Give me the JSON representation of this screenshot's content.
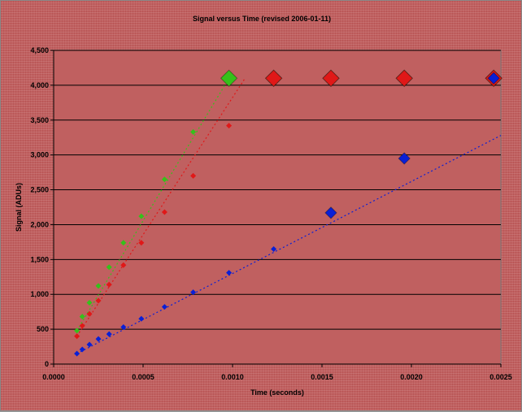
{
  "chart_data": {
    "type": "scatter",
    "title": "Signal versus Time (revised 2006-01-11)",
    "xlabel": "Time (seconds)",
    "ylabel": "Signal (ADUs)",
    "xlim": [
      0,
      0.0025
    ],
    "ylim": [
      0,
      4500
    ],
    "x_ticks": [
      "0.0000",
      "0.0005",
      "0.0010",
      "0.0015",
      "0.0020",
      "0.0025"
    ],
    "y_ticks": [
      "0",
      "500",
      "1,000",
      "1,500",
      "2,000",
      "2,500",
      "3,000",
      "3,500",
      "4,000",
      "4,500"
    ],
    "grid": true,
    "legend": "none",
    "plot_background": "#c06060",
    "series": [
      {
        "color": "#0a1fd6",
        "points": [
          [
            0.00013,
            150
          ],
          [
            0.00016,
            210
          ],
          [
            0.0002,
            280
          ],
          [
            0.00025,
            360
          ],
          [
            0.00031,
            430
          ],
          [
            0.00039,
            530
          ],
          [
            0.00049,
            650
          ],
          [
            0.00062,
            820
          ],
          [
            0.00078,
            1030
          ],
          [
            0.00098,
            1310
          ],
          [
            0.00123,
            1650
          ],
          [
            0.00155,
            2170
          ],
          [
            0.00196,
            2950
          ],
          [
            0.00246,
            4100
          ]
        ],
        "trend": [
          [
            0.00013,
            150
          ],
          [
            0.0025,
            3280
          ]
        ]
      },
      {
        "color": "#e01818",
        "points": [
          [
            0.00013,
            400
          ],
          [
            0.00016,
            550
          ],
          [
            0.0002,
            720
          ],
          [
            0.00025,
            910
          ],
          [
            0.00031,
            1140
          ],
          [
            0.00039,
            1420
          ],
          [
            0.00049,
            1740
          ],
          [
            0.00062,
            2180
          ],
          [
            0.00078,
            2700
          ],
          [
            0.00098,
            3420
          ],
          [
            0.00123,
            4100
          ],
          [
            0.00155,
            4100
          ],
          [
            0.00196,
            4100
          ],
          [
            0.00246,
            4100
          ]
        ],
        "trend": [
          [
            0.00013,
            400
          ],
          [
            0.00107,
            4100
          ]
        ]
      },
      {
        "color": "#35c11a",
        "points": [
          [
            0.00013,
            480
          ],
          [
            0.00016,
            680
          ],
          [
            0.0002,
            880
          ],
          [
            0.00025,
            1120
          ],
          [
            0.00031,
            1390
          ],
          [
            0.00039,
            1740
          ],
          [
            0.00049,
            2120
          ],
          [
            0.00062,
            2650
          ],
          [
            0.00078,
            3330
          ],
          [
            0.00098,
            4100
          ],
          [
            0.00123,
            4100
          ],
          [
            0.00155,
            4100
          ],
          [
            0.00196,
            4100
          ],
          [
            0.00246,
            4100
          ]
        ],
        "trend": [
          [
            0.00013,
            480
          ],
          [
            0.00098,
            4100
          ]
        ]
      }
    ]
  }
}
